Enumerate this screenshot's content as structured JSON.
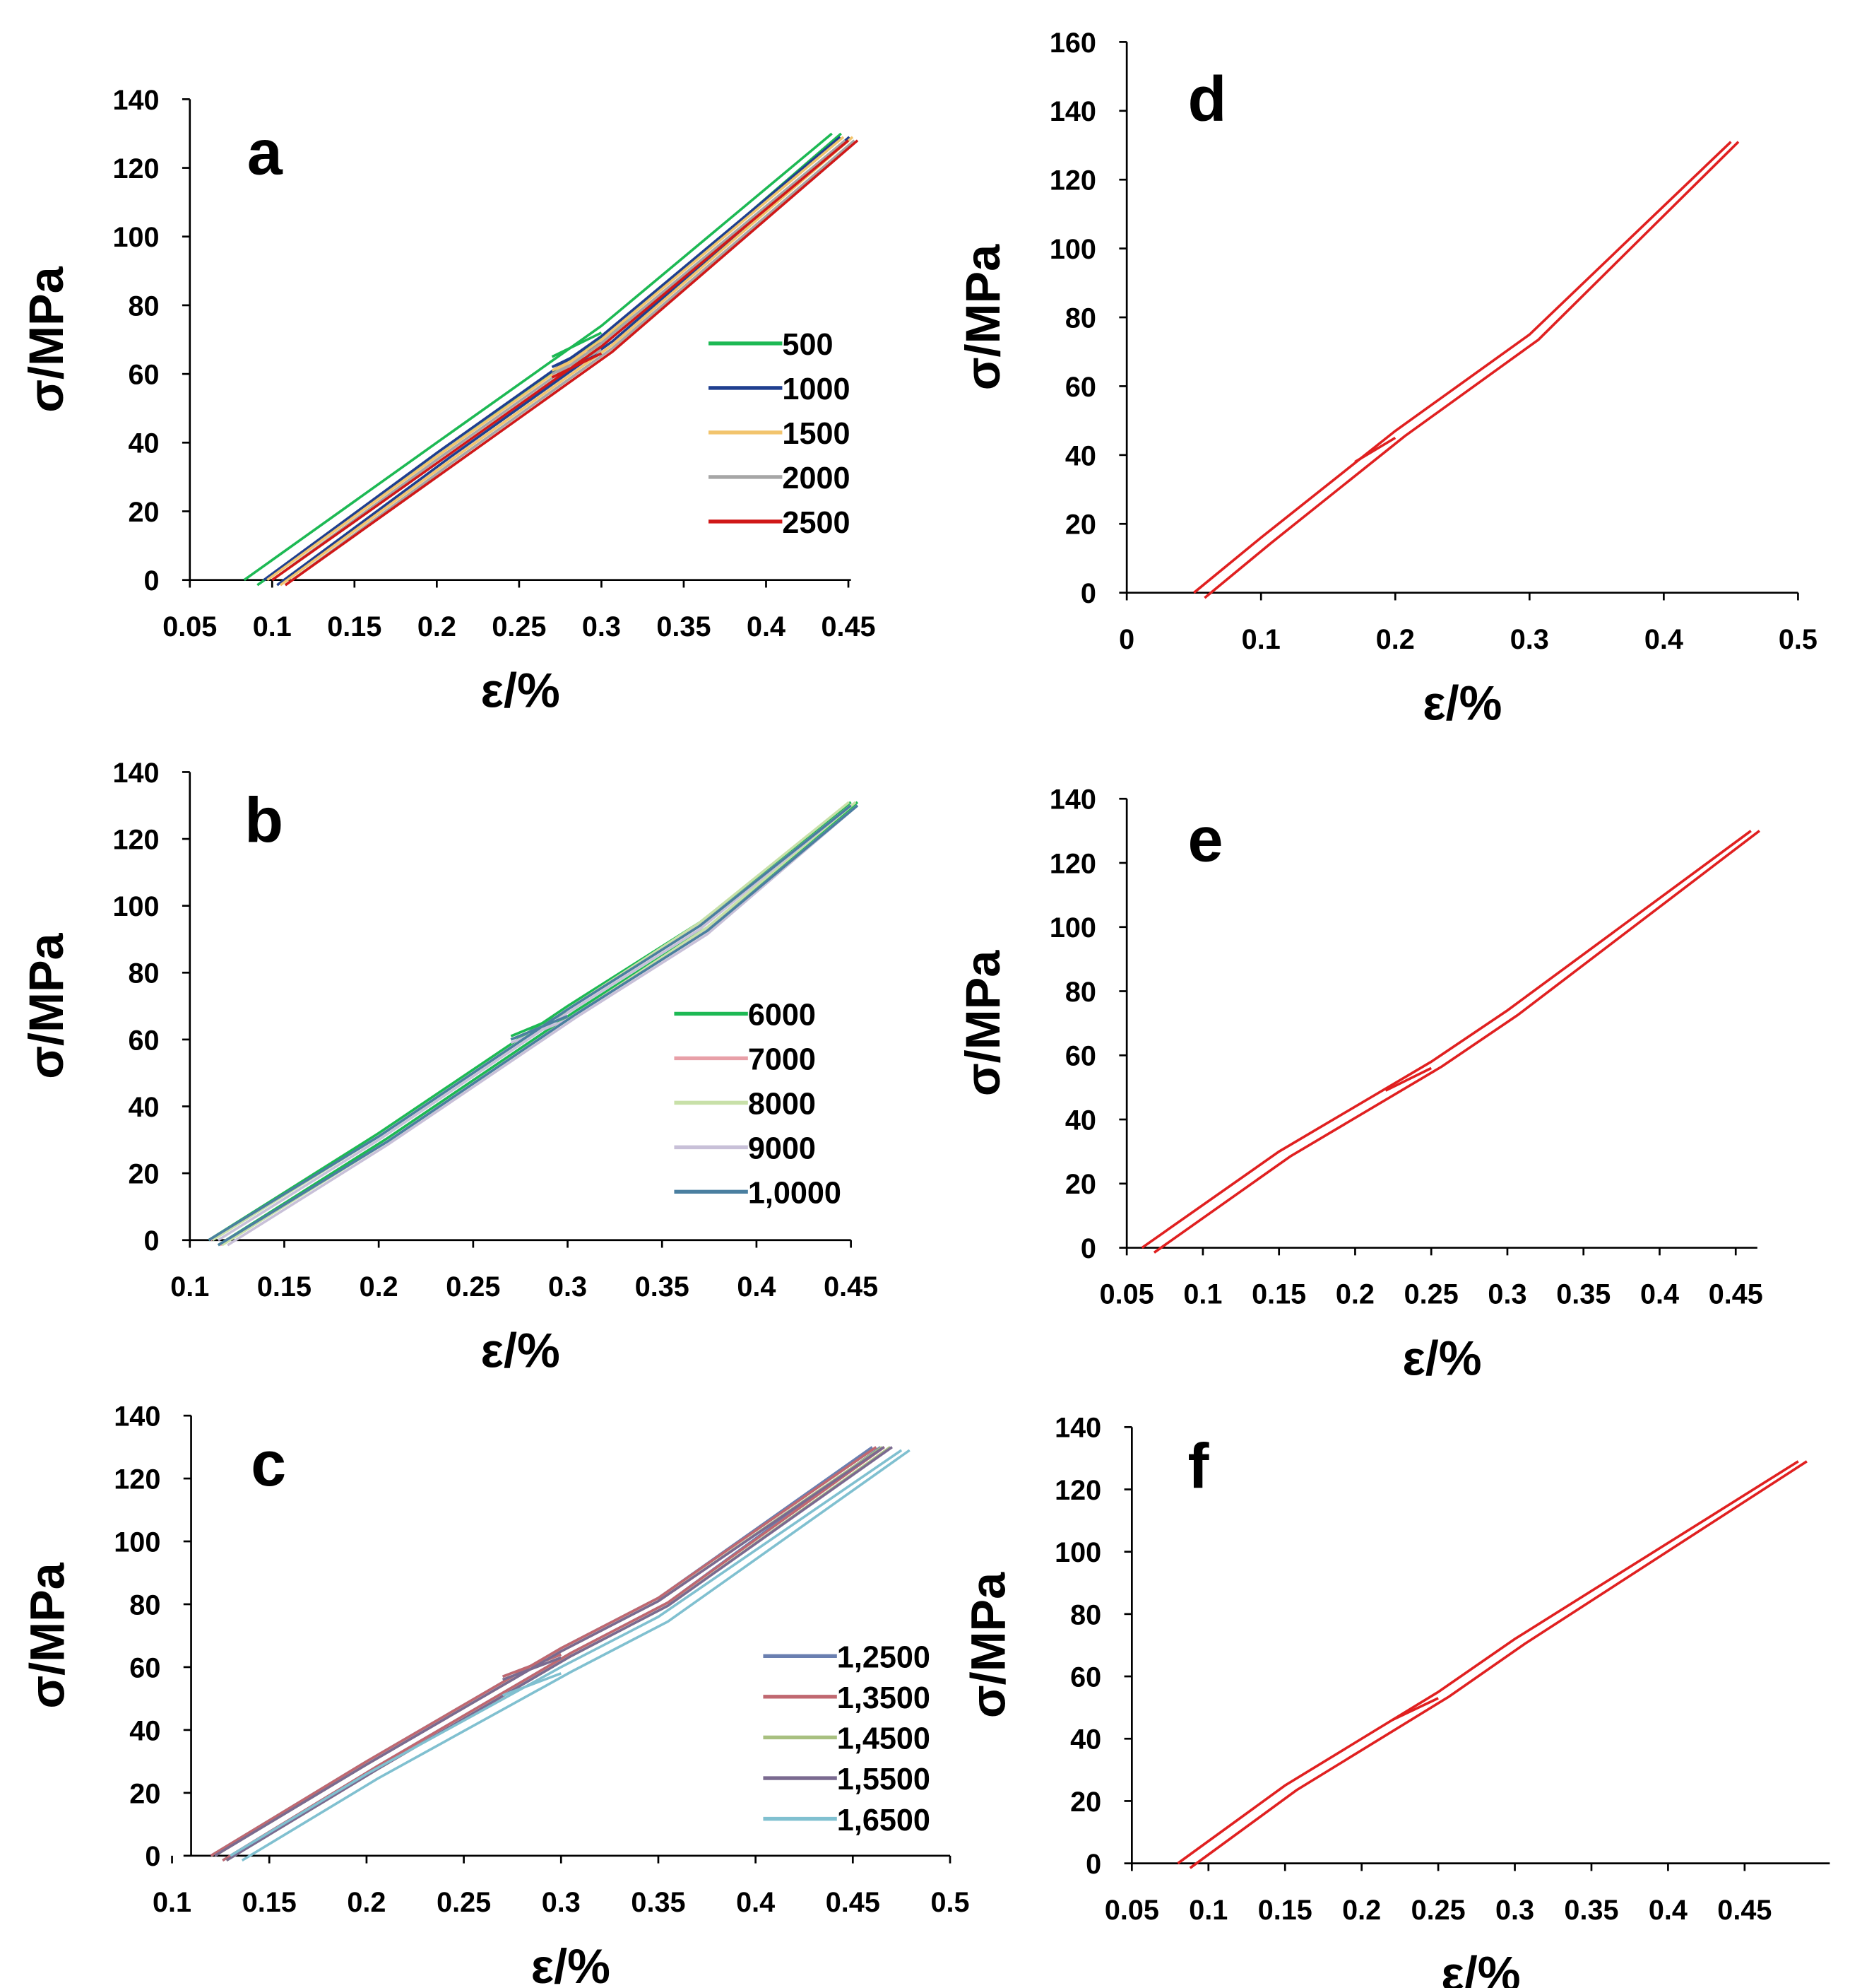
{
  "chart_data": [
    {
      "id": "a",
      "type": "line",
      "title": "a",
      "xlabel": "ε/%",
      "ylabel": "σ/MPa",
      "xlim": [
        0.05,
        0.45
      ],
      "ylim": [
        0,
        140
      ],
      "xticks": [
        "0.05",
        "0.1",
        "0.15",
        "0.2",
        "0.25",
        "0.3",
        "0.35",
        "0.4",
        "0.45"
      ],
      "yticks": [
        "0",
        "20",
        "40",
        "60",
        "80",
        "100",
        "120",
        "140"
      ],
      "legend_placement": "right",
      "hysteresis_offset": 0.008,
      "series": [
        {
          "name": "500",
          "color": "#1db954",
          "loading": [
            [
              0.083,
              0
            ],
            [
              0.2,
              40
            ],
            [
              0.3,
              74
            ],
            [
              0.44,
              130
            ]
          ]
        },
        {
          "name": "1000",
          "color": "#1f3f8f",
          "loading": [
            [
              0.095,
              0
            ],
            [
              0.2,
              37
            ],
            [
              0.3,
              71
            ],
            [
              0.445,
              129
            ]
          ]
        },
        {
          "name": "1500",
          "color": "#f2c46d",
          "loading": [
            [
              0.097,
              0
            ],
            [
              0.2,
              36
            ],
            [
              0.3,
              70
            ],
            [
              0.447,
              129
            ]
          ]
        },
        {
          "name": "2000",
          "color": "#a6a6a6",
          "loading": [
            [
              0.1,
              0
            ],
            [
              0.2,
              35
            ],
            [
              0.3,
              69
            ],
            [
              0.448,
              128
            ]
          ]
        },
        {
          "name": "2500",
          "color": "#d01818",
          "loading": [
            [
              0.1,
              0
            ],
            [
              0.2,
              34
            ],
            [
              0.3,
              68
            ],
            [
              0.45,
              128
            ]
          ]
        }
      ]
    },
    {
      "id": "b",
      "type": "line",
      "title": "b",
      "xlabel": "ε/%",
      "ylabel": "σ/MPa",
      "xlim": [
        0.1,
        0.45
      ],
      "ylim": [
        0,
        140
      ],
      "xticks": [
        "0.1",
        "0.15",
        "0.2",
        "0.25",
        "0.3",
        "0.35",
        "0.4",
        "0.45"
      ],
      "yticks": [
        "0",
        "20",
        "40",
        "60",
        "80",
        "100",
        "120",
        "140"
      ],
      "legend_placement": "right",
      "hysteresis_offset": 0.005,
      "series": [
        {
          "name": "6000",
          "color": "#1db954",
          "loading": [
            [
              0.11,
              0
            ],
            [
              0.2,
              32
            ],
            [
              0.3,
              70
            ],
            [
              0.37,
              95
            ],
            [
              0.45,
              131
            ]
          ]
        },
        {
          "name": "7000",
          "color": "#e8a0a8",
          "loading": [
            [
              0.111,
              0
            ],
            [
              0.2,
              31
            ],
            [
              0.3,
              69
            ],
            [
              0.37,
              94
            ],
            [
              0.45,
              130
            ]
          ]
        },
        {
          "name": "8000",
          "color": "#c8e0a8",
          "loading": [
            [
              0.112,
              0
            ],
            [
              0.2,
              31
            ],
            [
              0.3,
              69
            ],
            [
              0.37,
              95
            ],
            [
              0.449,
              131
            ]
          ]
        },
        {
          "name": "9000",
          "color": "#c8c0d8",
          "loading": [
            [
              0.115,
              0
            ],
            [
              0.2,
              30
            ],
            [
              0.3,
              68
            ],
            [
              0.37,
              93
            ],
            [
              0.45,
              130
            ]
          ]
        },
        {
          "name": "1,0000",
          "color": "#4a7fa0",
          "loading": [
            [
              0.11,
              0
            ],
            [
              0.2,
              31
            ],
            [
              0.3,
              69
            ],
            [
              0.37,
              94
            ],
            [
              0.45,
              130
            ]
          ]
        }
      ]
    },
    {
      "id": "c",
      "type": "line",
      "title": "c",
      "xlabel": "ε/%",
      "ylabel": "σ/MPa",
      "xlim": [
        0.1,
        0.5
      ],
      "ylim": [
        0,
        140
      ],
      "xticks": [
        "0.1",
        "0.15",
        "0.2",
        "0.25",
        "0.3",
        "0.35",
        "0.4",
        "0.45",
        "0.5"
      ],
      "yticks": [
        "0",
        "20",
        "40",
        "60",
        "80",
        "100",
        "120",
        "140"
      ],
      "legend_placement": "bottom-right",
      "hysteresis_offset": 0.006,
      "series": [
        {
          "name": "1,2500",
          "color": "#6a7fb0",
          "loading": [
            [
              0.12,
              0
            ],
            [
              0.2,
              30
            ],
            [
              0.3,
              66
            ],
            [
              0.35,
              82
            ],
            [
              0.46,
              130
            ]
          ]
        },
        {
          "name": "1,3500",
          "color": "#c06870",
          "loading": [
            [
              0.12,
              0
            ],
            [
              0.2,
              30
            ],
            [
              0.3,
              66
            ],
            [
              0.35,
              82
            ],
            [
              0.462,
              130
            ]
          ]
        },
        {
          "name": "1,4500",
          "color": "#a8c080",
          "loading": [
            [
              0.122,
              0
            ],
            [
              0.2,
              29
            ],
            [
              0.3,
              65
            ],
            [
              0.35,
              81
            ],
            [
              0.465,
              130
            ]
          ]
        },
        {
          "name": "1,5500",
          "color": "#7a6a90",
          "loading": [
            [
              0.122,
              0
            ],
            [
              0.2,
              29
            ],
            [
              0.3,
              65
            ],
            [
              0.35,
              81
            ],
            [
              0.466,
              130
            ]
          ]
        },
        {
          "name": "1,6500",
          "color": "#80c0d0",
          "loading": [
            [
              0.13,
              0
            ],
            [
              0.2,
              26
            ],
            [
              0.3,
              60
            ],
            [
              0.35,
              76
            ],
            [
              0.475,
              129
            ]
          ]
        }
      ]
    },
    {
      "id": "d",
      "type": "line",
      "title": "d",
      "xlabel": "ε/%",
      "ylabel": "σ/MPa",
      "xlim": [
        0,
        0.5
      ],
      "ylim": [
        0,
        160
      ],
      "xticks": [
        "0",
        "0.1",
        "0.2",
        "0.3",
        "0.4",
        "0.5"
      ],
      "yticks": [
        "0",
        "20",
        "40",
        "60",
        "80",
        "100",
        "120",
        "140",
        "160"
      ],
      "hysteresis_offset": 0.008,
      "series": [
        {
          "name": "",
          "color": "#e02020",
          "loading": [
            [
              0.05,
              0
            ],
            [
              0.1,
              16
            ],
            [
              0.2,
              47
            ],
            [
              0.3,
              75
            ],
            [
              0.45,
              131
            ]
          ]
        }
      ]
    },
    {
      "id": "e",
      "type": "line",
      "title": "e",
      "xlabel": "ε/%",
      "ylabel": "σ/MPa",
      "xlim": [
        0.05,
        0.45
      ],
      "ylim": [
        0,
        140
      ],
      "xticks": [
        "0.05",
        "0.1",
        "0.15",
        "0.2",
        "0.25",
        "0.3",
        "0.35",
        "0.4",
        "0.45"
      ],
      "yticks": [
        "0",
        "20",
        "40",
        "60",
        "80",
        "100",
        "120",
        "140"
      ],
      "hysteresis_offset": 0.008,
      "series": [
        {
          "name": "",
          "color": "#e02020",
          "loading": [
            [
              0.06,
              0
            ],
            [
              0.15,
              30
            ],
            [
              0.25,
              58
            ],
            [
              0.3,
              74
            ],
            [
              0.46,
              130
            ]
          ]
        }
      ]
    },
    {
      "id": "f",
      "type": "line",
      "title": "f",
      "xlabel": "ε/%",
      "ylabel": "σ/MPa",
      "xlim": [
        0.05,
        0.45
      ],
      "ylim": [
        0,
        140
      ],
      "xticks": [
        "0.05",
        "0.1",
        "0.15",
        "0.2",
        "0.25",
        "0.3",
        "0.35",
        "0.4",
        "0.45"
      ],
      "yticks": [
        "0",
        "20",
        "40",
        "60",
        "80",
        "100",
        "120",
        "140"
      ],
      "hysteresis_offset": 0.008,
      "series": [
        {
          "name": "",
          "color": "#e02020",
          "loading": [
            [
              0.08,
              0
            ],
            [
              0.15,
              25
            ],
            [
              0.25,
              55
            ],
            [
              0.3,
              72
            ],
            [
              0.485,
              129
            ]
          ]
        }
      ]
    }
  ]
}
